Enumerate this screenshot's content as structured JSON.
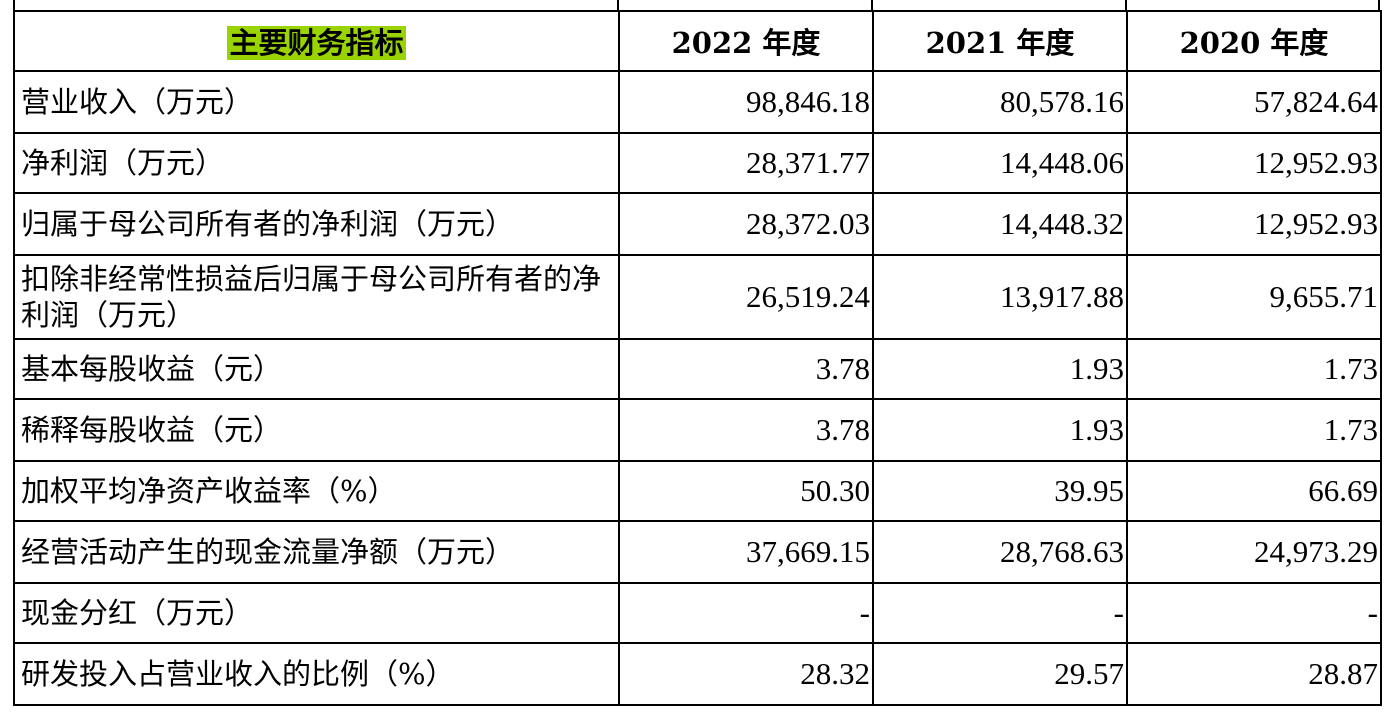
{
  "header": {
    "indicator": "主要财务指标",
    "years": [
      "2022 年度",
      "2021 年度",
      "2020 年度"
    ]
  },
  "rows": [
    {
      "label": "营业收入（万元）",
      "values": [
        "98,846.18",
        "80,578.16",
        "57,824.64"
      ]
    },
    {
      "label": "净利润（万元）",
      "values": [
        "28,371.77",
        "14,448.06",
        "12,952.93"
      ]
    },
    {
      "label": "归属于母公司所有者的净利润（万元）",
      "values": [
        "28,372.03",
        "14,448.32",
        "12,952.93"
      ]
    },
    {
      "label": "扣除非经常性损益后归属于母公司所有者的净利润（万元）",
      "values": [
        "26,519.24",
        "13,917.88",
        "9,655.71"
      ]
    },
    {
      "label": "基本每股收益（元）",
      "values": [
        "3.78",
        "1.93",
        "1.73"
      ]
    },
    {
      "label": "稀释每股收益（元）",
      "values": [
        "3.78",
        "1.93",
        "1.73"
      ]
    },
    {
      "label": "加权平均净资产收益率（%）",
      "values": [
        "50.30",
        "39.95",
        "66.69"
      ]
    },
    {
      "label": "经营活动产生的现金流量净额（万元）",
      "values": [
        "37,669.15",
        "28,768.63",
        "24,973.29"
      ]
    },
    {
      "label": "现金分红（万元）",
      "values": [
        "-",
        "-",
        "-"
      ]
    },
    {
      "label": "研发投入占营业收入的比例（%）",
      "values": [
        "28.32",
        "29.57",
        "28.87"
      ]
    }
  ],
  "colors": {
    "header_highlight": "#9ad400"
  }
}
